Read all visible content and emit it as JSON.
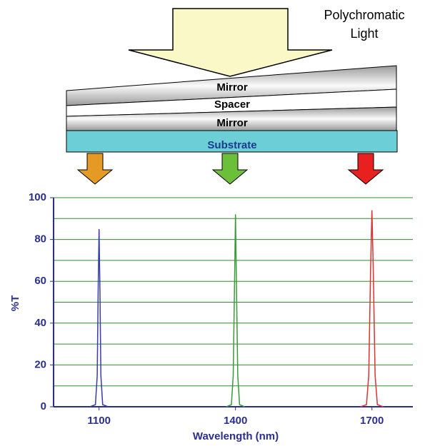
{
  "diagram": {
    "light_label": [
      "Polychromatic",
      "Light"
    ],
    "layers": [
      "Mirror",
      "Spacer",
      "Mirror",
      "Substrate"
    ]
  },
  "chart_data": {
    "type": "line",
    "xlabel": "Wavelength (nm)",
    "ylabel": "%T",
    "xlim": [
      1000,
      1790
    ],
    "xticks": [
      1100,
      1400,
      1700
    ],
    "ylim": [
      0,
      100
    ],
    "yticks": [
      0,
      20,
      40,
      60,
      80,
      100
    ],
    "minor_yticks": [
      10,
      30,
      50,
      70,
      90
    ],
    "grid": true,
    "series": [
      {
        "color": "#3a3ab0",
        "x": [
          1080,
          1092,
          1096,
          1098,
          1100,
          1102,
          1104,
          1108,
          1120
        ],
        "values": [
          0,
          1,
          15,
          55,
          85,
          55,
          15,
          1,
          0
        ]
      },
      {
        "color": "#3a9a3a",
        "x": [
          1380,
          1391,
          1395,
          1398,
          1400,
          1402,
          1405,
          1409,
          1420
        ],
        "values": [
          0,
          1,
          15,
          60,
          92,
          60,
          15,
          1,
          0
        ]
      },
      {
        "color": "#e03030",
        "x": [
          1675,
          1688,
          1693,
          1697,
          1700,
          1703,
          1707,
          1712,
          1725
        ],
        "values": [
          0,
          1,
          15,
          65,
          94,
          65,
          15,
          1,
          0
        ]
      }
    ]
  }
}
